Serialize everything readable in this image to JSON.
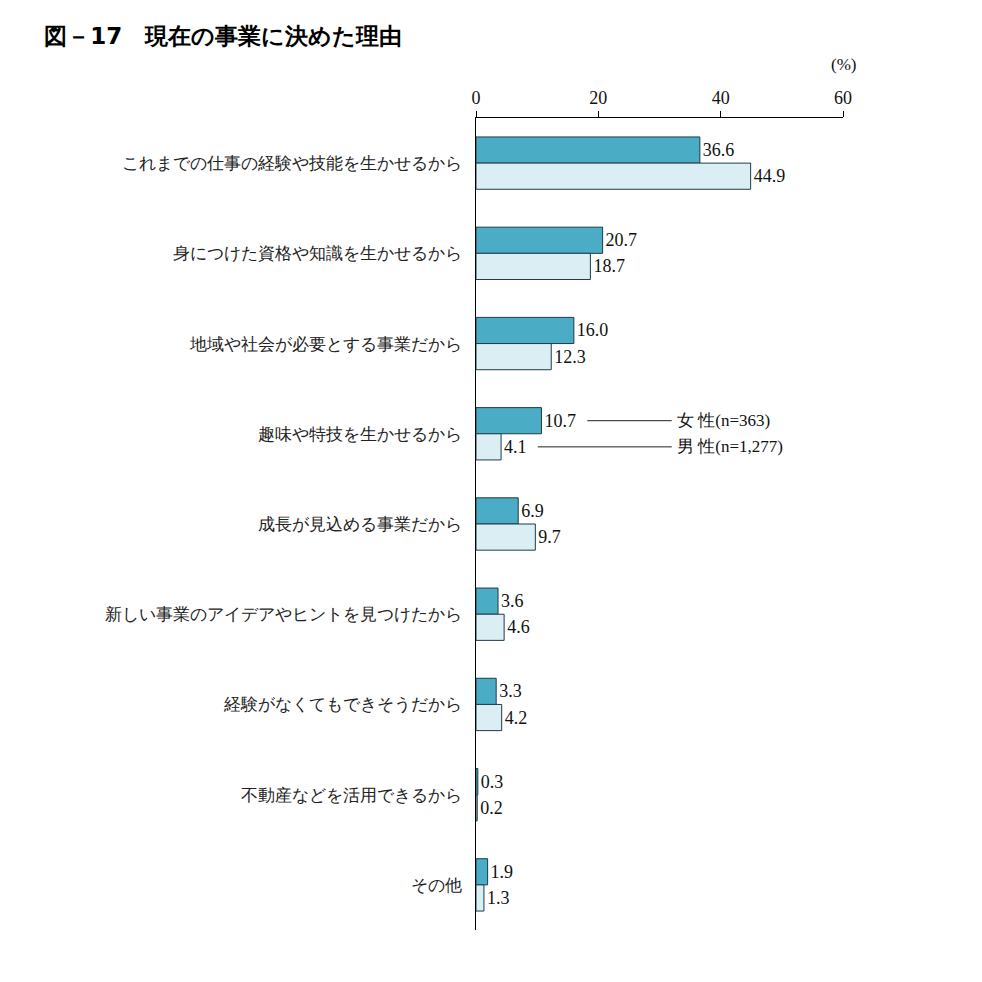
{
  "chart_data": {
    "type": "bar",
    "orientation": "horizontal",
    "title": "図－17　現在の事業に決めた理由",
    "xlabel": "(%)",
    "categories": [
      "これまでの仕事の経験や技能を生かせるから",
      "身につけた資格や知識を生かせるから",
      "地域や社会が必要とする事業だから",
      "趣味や特技を生かせるから",
      "成長が見込める事業だから",
      "新しい事業のアイデアやヒントを見つけたから",
      "経験がなくてもできそうだから",
      "不動産などを活用できるから",
      "その他"
    ],
    "series": [
      {
        "name": "女 性(n=363)",
        "color": "#4bacc6",
        "values": [
          36.6,
          20.7,
          16.0,
          10.7,
          6.9,
          3.6,
          3.3,
          0.3,
          1.9
        ],
        "value_labels": [
          "36.6",
          "20.7",
          "16.0",
          "10.7",
          "6.9",
          "3.6",
          "3.3",
          "0.3",
          "1.9"
        ]
      },
      {
        "name": "男 性(n=1,277)",
        "color": "#daeef3",
        "values": [
          44.9,
          18.7,
          12.3,
          4.1,
          9.7,
          4.6,
          4.2,
          0.2,
          1.3
        ],
        "value_labels": [
          "44.9",
          "18.7",
          "12.3",
          "4.1",
          "9.7",
          "4.6",
          "4.2",
          "0.2",
          "1.3"
        ]
      }
    ],
    "xlim": [
      0,
      60
    ],
    "xticks": [
      0,
      20,
      40,
      60
    ],
    "data_labels": true,
    "grid": false
  }
}
